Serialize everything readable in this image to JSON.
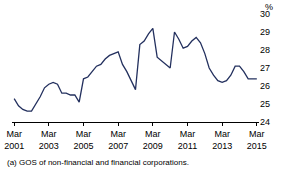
{
  "chart_data": {
    "type": "line",
    "y_label": "%",
    "footnote": "(a) GOS of non-financial and financial corporations.",
    "categories": [
      "Mar 2001",
      null,
      null,
      null,
      null,
      null,
      null,
      null,
      "Mar 2003",
      null,
      null,
      null,
      null,
      null,
      null,
      null,
      "Mar 2005",
      null,
      null,
      null,
      null,
      null,
      null,
      null,
      "Mar 2007",
      null,
      null,
      null,
      null,
      null,
      null,
      null,
      "Mar 2009",
      null,
      null,
      null,
      null,
      null,
      null,
      null,
      "Mar 2011",
      null,
      null,
      null,
      null,
      null,
      null,
      null,
      "Mar 2013",
      null,
      null,
      null,
      null,
      null,
      null,
      null,
      "Mar 2015"
    ],
    "values": [
      25.3,
      24.9,
      24.7,
      24.6,
      24.6,
      25.0,
      25.4,
      25.9,
      26.1,
      26.2,
      26.1,
      25.6,
      25.6,
      25.5,
      25.5,
      25.1,
      26.4,
      26.5,
      26.8,
      27.1,
      27.2,
      27.5,
      27.7,
      27.8,
      27.9,
      27.2,
      26.8,
      26.3,
      25.8,
      28.3,
      28.5,
      28.9,
      29.2,
      27.6,
      27.4,
      27.2,
      27.0,
      29.0,
      28.6,
      28.1,
      28.2,
      28.5,
      28.7,
      28.4,
      27.8,
      27.0,
      26.6,
      26.3,
      26.2,
      26.3,
      26.6,
      27.1,
      27.1,
      26.8,
      26.4,
      26.4,
      26.4
    ],
    "color": "#23305e",
    "ylim": [
      24,
      30
    ],
    "yticks": [
      24,
      25,
      26,
      27,
      28,
      29,
      30
    ],
    "grid": false
  }
}
